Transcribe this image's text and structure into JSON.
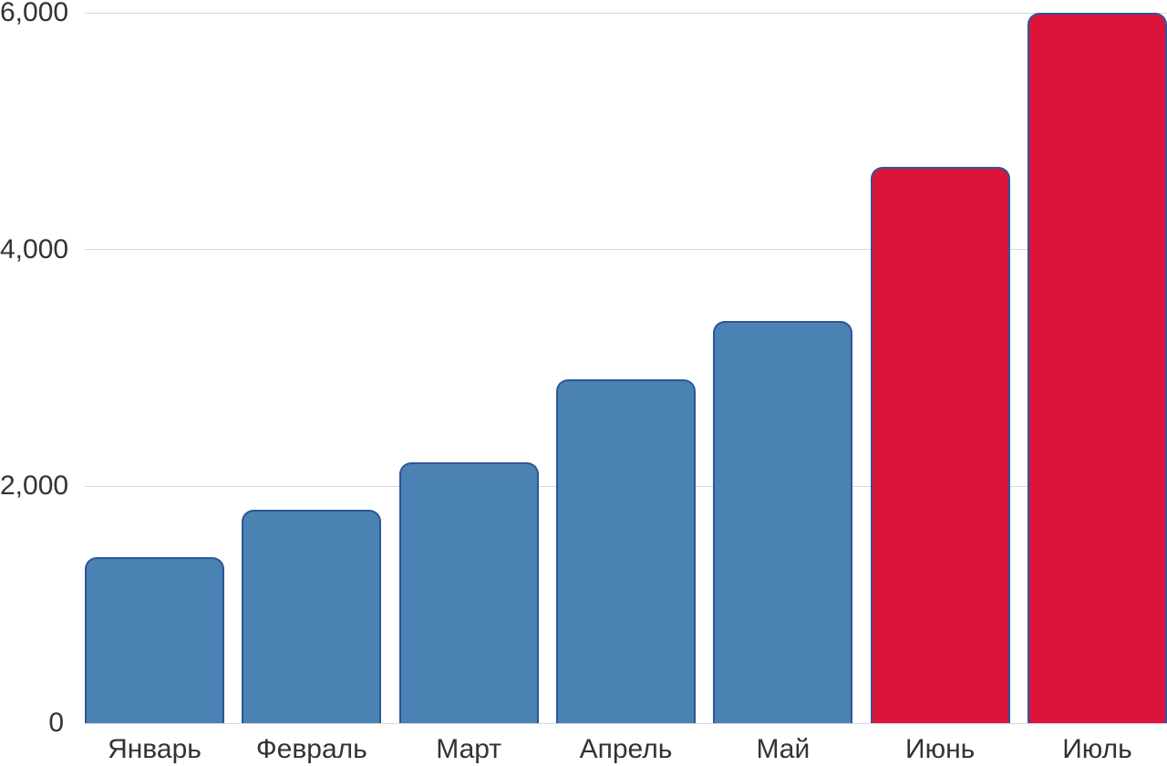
{
  "chart_data": {
    "type": "bar",
    "title": "",
    "xlabel": "",
    "ylabel": "",
    "categories": [
      "Январь",
      "Февраль",
      "Март",
      "Апрель",
      "Май",
      "Июнь",
      "Июль"
    ],
    "values": [
      1400,
      1800,
      2200,
      2900,
      3400,
      4700,
      6000
    ],
    "highlighted_categories": [
      "Июнь",
      "Июль"
    ],
    "ylim": [
      0,
      6000
    ],
    "yticks": [
      {
        "value": 0,
        "label": "0"
      },
      {
        "value": 2000,
        "label": "2,000"
      },
      {
        "value": 4000,
        "label": "4,000"
      },
      {
        "value": 6000,
        "label": "6,000"
      }
    ],
    "grid": true,
    "legend": false,
    "colors": {
      "bar_fill": "#4A82B4",
      "bar_highlight_fill": "#DC143C",
      "bar_stroke": "#2F5597",
      "gridline": "#D8D8D8",
      "tick_text": "#333333",
      "background": "#FFFFFF"
    }
  }
}
